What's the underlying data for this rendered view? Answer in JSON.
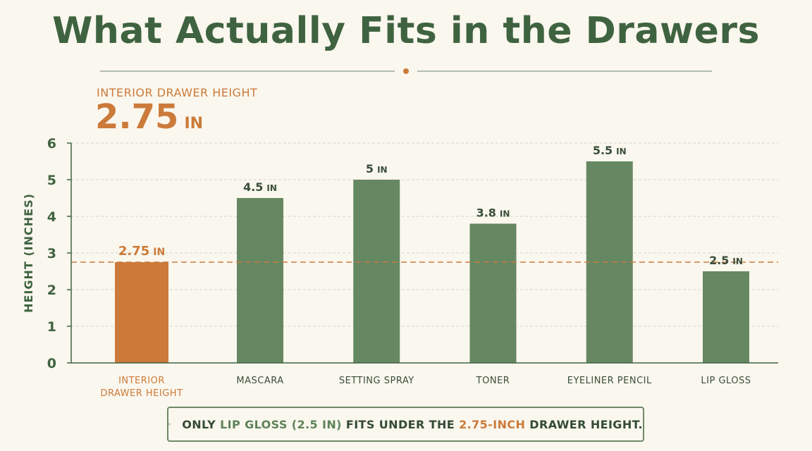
{
  "title": "What Actually Fits in the Drawers",
  "reference": {
    "caption": "INTERIOR DRAWER HEIGHT",
    "value": "2.75",
    "unit": "IN"
  },
  "chart_data": {
    "type": "bar",
    "title": "What Actually Fits in the Drawers",
    "ylabel": "HEIGHT (INCHES)",
    "xlabel": "",
    "ylim": [
      0,
      6
    ],
    "yticks": [
      0,
      1,
      2,
      3,
      4,
      5,
      6
    ],
    "grid": true,
    "categories": [
      "INTERIOR DRAWER HEIGHT",
      "MASCARA",
      "SETTING SPRAY",
      "TONER",
      "EYELINER PENCIL",
      "LIP GLOSS"
    ],
    "category_lines": [
      [
        "INTERIOR",
        "DRAWER HEIGHT"
      ],
      [
        "MASCARA"
      ],
      [
        "SETTING SPRAY"
      ],
      [
        "TONER"
      ],
      [
        "EYELINER PENCIL"
      ],
      [
        "LIP GLOSS"
      ]
    ],
    "values": [
      2.75,
      4.5,
      5,
      3.8,
      5.5,
      2.5
    ],
    "value_labels": [
      "2.75",
      "4.5",
      "5",
      "3.8",
      "5.5",
      "2.5"
    ],
    "value_unit": "IN",
    "highlight_index": 0,
    "reference_line": 2.75,
    "colors": {
      "bar": "#658862",
      "highlight": "#cc7a3a",
      "axis": "#3f6340",
      "grid": "#d8d6cc",
      "reference": "#c97b3e"
    }
  },
  "note": {
    "lead": "ONLY",
    "item": "LIP GLOSS (2.5 IN)",
    "middle": "FITS UNDER THE",
    "limit": "2.75-INCH",
    "tail": "DRAWER HEIGHT.",
    "icon": "check-circle-icon"
  }
}
